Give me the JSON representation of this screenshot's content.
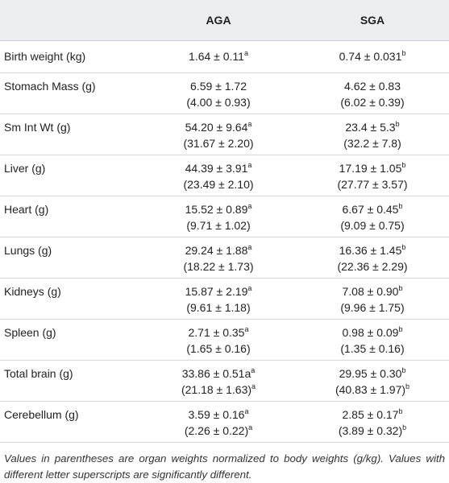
{
  "table": {
    "header": [
      "AGA",
      "SGA"
    ],
    "rows": [
      {
        "label": "Birth weight (kg)",
        "cells": [
          [
            {
              "text": "1.64 ± 0.11",
              "sup": "a"
            }
          ],
          [
            {
              "text": "0.74 ± 0.031",
              "sup": "b"
            }
          ]
        ]
      },
      {
        "label": "Stomach Mass (g)",
        "cells": [
          [
            {
              "text": "6.59 ± 1.72"
            },
            {
              "text": "(4.00 ± 0.93)"
            }
          ],
          [
            {
              "text": "4.62 ± 0.83"
            },
            {
              "text": "(6.02 ± 0.39)"
            }
          ]
        ]
      },
      {
        "label": "Sm Int Wt (g)",
        "cells": [
          [
            {
              "text": "54.20 ± 9.64",
              "sup": "a"
            },
            {
              "text": "(31.67 ± 2.20)"
            }
          ],
          [
            {
              "text": "23.4 ± 5.3",
              "sup": "b"
            },
            {
              "text": "(32.2 ± 7.8)"
            }
          ]
        ]
      },
      {
        "label": "Liver (g)",
        "cells": [
          [
            {
              "text": "44.39 ± 3.91",
              "sup": "a"
            },
            {
              "text": "(23.49 ± 2.10)"
            }
          ],
          [
            {
              "text": "17.19 ± 1.05",
              "sup": "b"
            },
            {
              "text": "(27.77 ± 3.57)"
            }
          ]
        ]
      },
      {
        "label": "Heart (g)",
        "cells": [
          [
            {
              "text": "15.52 ± 0.89",
              "sup": "a"
            },
            {
              "text": "(9.71 ± 1.02)"
            }
          ],
          [
            {
              "text": "6.67 ± 0.45",
              "sup": "b"
            },
            {
              "text": "(9.09 ± 0.75)"
            }
          ]
        ]
      },
      {
        "label": "Lungs (g)",
        "cells": [
          [
            {
              "text": "29.24 ± 1.88",
              "sup": "a"
            },
            {
              "text": "(18.22 ± 1.73)"
            }
          ],
          [
            {
              "text": "16.36 ± 1.45",
              "sup": "b"
            },
            {
              "text": "(22.36 ± 2.29)"
            }
          ]
        ]
      },
      {
        "label": "Kidneys (g)",
        "cells": [
          [
            {
              "text": "15.87 ± 2.19",
              "sup": "a"
            },
            {
              "text": "(9.61 ± 1.18)"
            }
          ],
          [
            {
              "text": "7.08 ± 0.90",
              "sup": "b"
            },
            {
              "text": "(9.96 ± 1.75)"
            }
          ]
        ]
      },
      {
        "label": "Spleen (g)",
        "cells": [
          [
            {
              "text": "2.71 ± 0.35",
              "sup": "a"
            },
            {
              "text": "(1.65 ± 0.16)"
            }
          ],
          [
            {
              "text": "0.98 ± 0.09",
              "sup": "b"
            },
            {
              "text": "(1.35 ± 0.16)"
            }
          ]
        ]
      },
      {
        "label": "Total brain (g)",
        "cells": [
          [
            {
              "text": "33.86 ± 0.51a",
              "sup": "a"
            },
            {
              "text": "(21.18 ± 1.63)",
              "sup": "a"
            }
          ],
          [
            {
              "text": "29.95 ± 0.30",
              "sup": "b"
            },
            {
              "text": "(40.83 ± 1.97)",
              "sup": "b"
            }
          ]
        ]
      },
      {
        "label": "Cerebellum (g)",
        "cells": [
          [
            {
              "text": "3.59 ± 0.16",
              "sup": "a"
            },
            {
              "text": "(2.26 ± 0.22)",
              "sup": "a"
            }
          ],
          [
            {
              "text": "2.85 ± 0.17",
              "sup": "b"
            },
            {
              "text": "(3.89 ± 0.32)",
              "sup": "b"
            }
          ]
        ]
      }
    ]
  },
  "footnote": "Values in parentheses are organ weights normalized to body weights (g/kg). Values with different letter superscripts are significantly different."
}
